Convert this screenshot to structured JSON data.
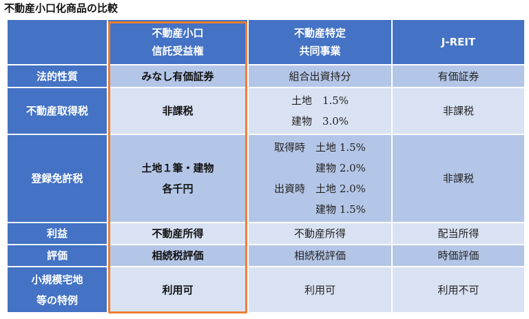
{
  "title": "不動産小口化商品の比較",
  "columns": [
    {
      "line1": "",
      "line2": ""
    },
    {
      "line1": "不動産小口",
      "line2": "信託受益権"
    },
    {
      "line1": "不動産特定",
      "line2": "共同事業"
    },
    {
      "line1": "J-REIT",
      "line2": ""
    }
  ],
  "rows": {
    "legal": {
      "label": "法的性質",
      "c1": "みなし有価証券",
      "c2": "組合出資持分",
      "c3": "有価証券"
    },
    "acq": {
      "label": "不動産取得税",
      "c1": "非課税",
      "c2_line1": "土地　1.5%",
      "c2_line2": "建物　3.0%",
      "c3": "非課税"
    },
    "reg": {
      "label": "登録免許税",
      "c1_line1": "土地１筆・建物",
      "c1_line2": "各千円",
      "c2_lines": [
        "取得時　土地 1.5%",
        "　　　　建物 2.0%",
        "出資時　土地 2.0%",
        "　　　　建物 1.5%"
      ],
      "c3": "非課税"
    },
    "profit": {
      "label": "利益",
      "c1": "不動産所得",
      "c2": "不動産所得",
      "c3": "配当所得"
    },
    "valuation": {
      "label": "評価",
      "c1": "相続税評価",
      "c2": "相続税評価",
      "c3": "時価評価"
    },
    "special": {
      "label_line1": "小規模宅地",
      "label_line2": "等の特例",
      "c1": "利用可",
      "c2": "利用可",
      "c3": "利用不可"
    }
  },
  "colors": {
    "header": "#4472c4",
    "row_a": "#b4c6e7",
    "row_b": "#d9e2f3",
    "highlight": "#ed7d31"
  }
}
